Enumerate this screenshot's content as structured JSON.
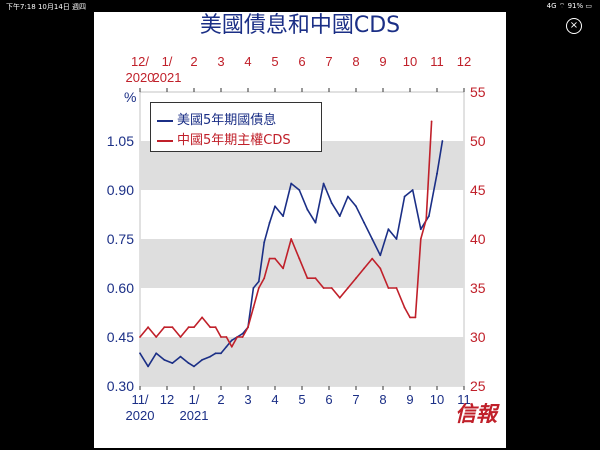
{
  "status_bar": {
    "time": "下午7:18",
    "date": "10月14日 週四",
    "signal": "4G",
    "battery": "91%"
  },
  "close_icon": "close-icon",
  "chart_data": {
    "type": "line",
    "title": "美國債息和中國CDS",
    "left_unit": "%",
    "left_axis": {
      "ticks": [
        "0.30",
        "0.45",
        "0.60",
        "0.75",
        "0.90",
        "1.05"
      ],
      "range": [
        0.3,
        1.2
      ],
      "color": "#1b2f86"
    },
    "right_axis": {
      "ticks": [
        "25",
        "30",
        "35",
        "40",
        "45",
        "50",
        "55"
      ],
      "range": [
        25,
        55
      ],
      "color": "#c0202a"
    },
    "bottom_axis": {
      "tick_labels": [
        "11/",
        "12",
        "1/",
        "2",
        "3",
        "4",
        "5",
        "6",
        "7",
        "8",
        "9",
        "10",
        "11"
      ],
      "year_labels": [
        "2020",
        "2021"
      ],
      "color": "#1b2f86"
    },
    "top_axis": {
      "tick_labels": [
        "12/",
        "1/",
        "2",
        "3",
        "4",
        "5",
        "6",
        "7",
        "8",
        "9",
        "10",
        "11",
        "12"
      ],
      "year_labels": [
        "2020",
        "2021"
      ],
      "color": "#c0202a"
    },
    "grid_bands": true,
    "legend_position": "top-left",
    "series": [
      {
        "name": "美國5年期國債息",
        "color": "#1b2f86",
        "axis": "left",
        "x": [
          0,
          0.3,
          0.6,
          0.9,
          1.2,
          1.5,
          1.8,
          2.0,
          2.3,
          2.6,
          2.8,
          3.0,
          3.2,
          3.4,
          3.6,
          3.8,
          4.0,
          4.2,
          4.4,
          4.6,
          4.8,
          5.0,
          5.3,
          5.6,
          5.9,
          6.2,
          6.5,
          6.8,
          7.1,
          7.4,
          7.7,
          8.0,
          8.3,
          8.6,
          8.9,
          9.2,
          9.5,
          9.8,
          10.1,
          10.4,
          10.7,
          11.0,
          11.2
        ],
        "y": [
          0.4,
          0.36,
          0.4,
          0.38,
          0.37,
          0.39,
          0.37,
          0.36,
          0.38,
          0.39,
          0.4,
          0.4,
          0.42,
          0.44,
          0.45,
          0.46,
          0.48,
          0.6,
          0.62,
          0.74,
          0.8,
          0.85,
          0.82,
          0.92,
          0.9,
          0.84,
          0.8,
          0.92,
          0.86,
          0.82,
          0.88,
          0.85,
          0.8,
          0.75,
          0.7,
          0.78,
          0.75,
          0.88,
          0.9,
          0.78,
          0.82,
          0.95,
          1.05
        ]
      },
      {
        "name": "中國5年期主權CDS",
        "color": "#c0202a",
        "axis": "right",
        "x": [
          0,
          0.3,
          0.6,
          0.9,
          1.2,
          1.5,
          1.8,
          2.0,
          2.3,
          2.6,
          2.8,
          3.0,
          3.2,
          3.4,
          3.6,
          3.8,
          4.0,
          4.2,
          4.4,
          4.6,
          4.8,
          5.0,
          5.3,
          5.6,
          5.9,
          6.2,
          6.5,
          6.8,
          7.1,
          7.4,
          7.7,
          8.0,
          8.3,
          8.6,
          8.9,
          9.2,
          9.5,
          9.8,
          10.0,
          10.2,
          10.4,
          10.6,
          10.8
        ],
        "y": [
          30,
          31,
          30,
          31,
          31,
          30,
          31,
          31,
          32,
          31,
          31,
          30,
          30,
          29,
          30,
          30,
          31,
          33,
          35,
          36,
          38,
          38,
          37,
          40,
          38,
          36,
          36,
          35,
          35,
          34,
          35,
          36,
          37,
          38,
          37,
          35,
          35,
          33,
          32,
          32,
          40,
          42,
          52
        ]
      }
    ]
  },
  "watermark": "信報"
}
